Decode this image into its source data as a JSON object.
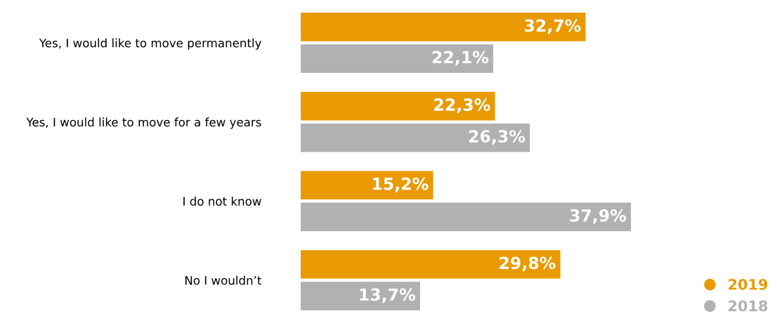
{
  "chart_data": {
    "type": "bar",
    "orientation": "horizontal",
    "categories": [
      "Yes, I would like to move permanently",
      "Yes, I would like to move for a few years",
      "I do not know",
      "No I wouldn’t"
    ],
    "series": [
      {
        "name": "2019",
        "color": "#e99a00",
        "values": [
          32.7,
          22.3,
          15.2,
          29.8
        ],
        "value_labels": [
          "32,7%",
          "22,3%",
          "15,2%",
          "29,8%"
        ]
      },
      {
        "name": "2018",
        "color": "#b1b1b1",
        "values": [
          22.1,
          26.3,
          37.9,
          13.7
        ],
        "value_labels": [
          "22,1%",
          "26,3%",
          "37,9%",
          "13,7%"
        ]
      }
    ],
    "legend": "bottom right",
    "marker": "circle",
    "grid": false
  }
}
